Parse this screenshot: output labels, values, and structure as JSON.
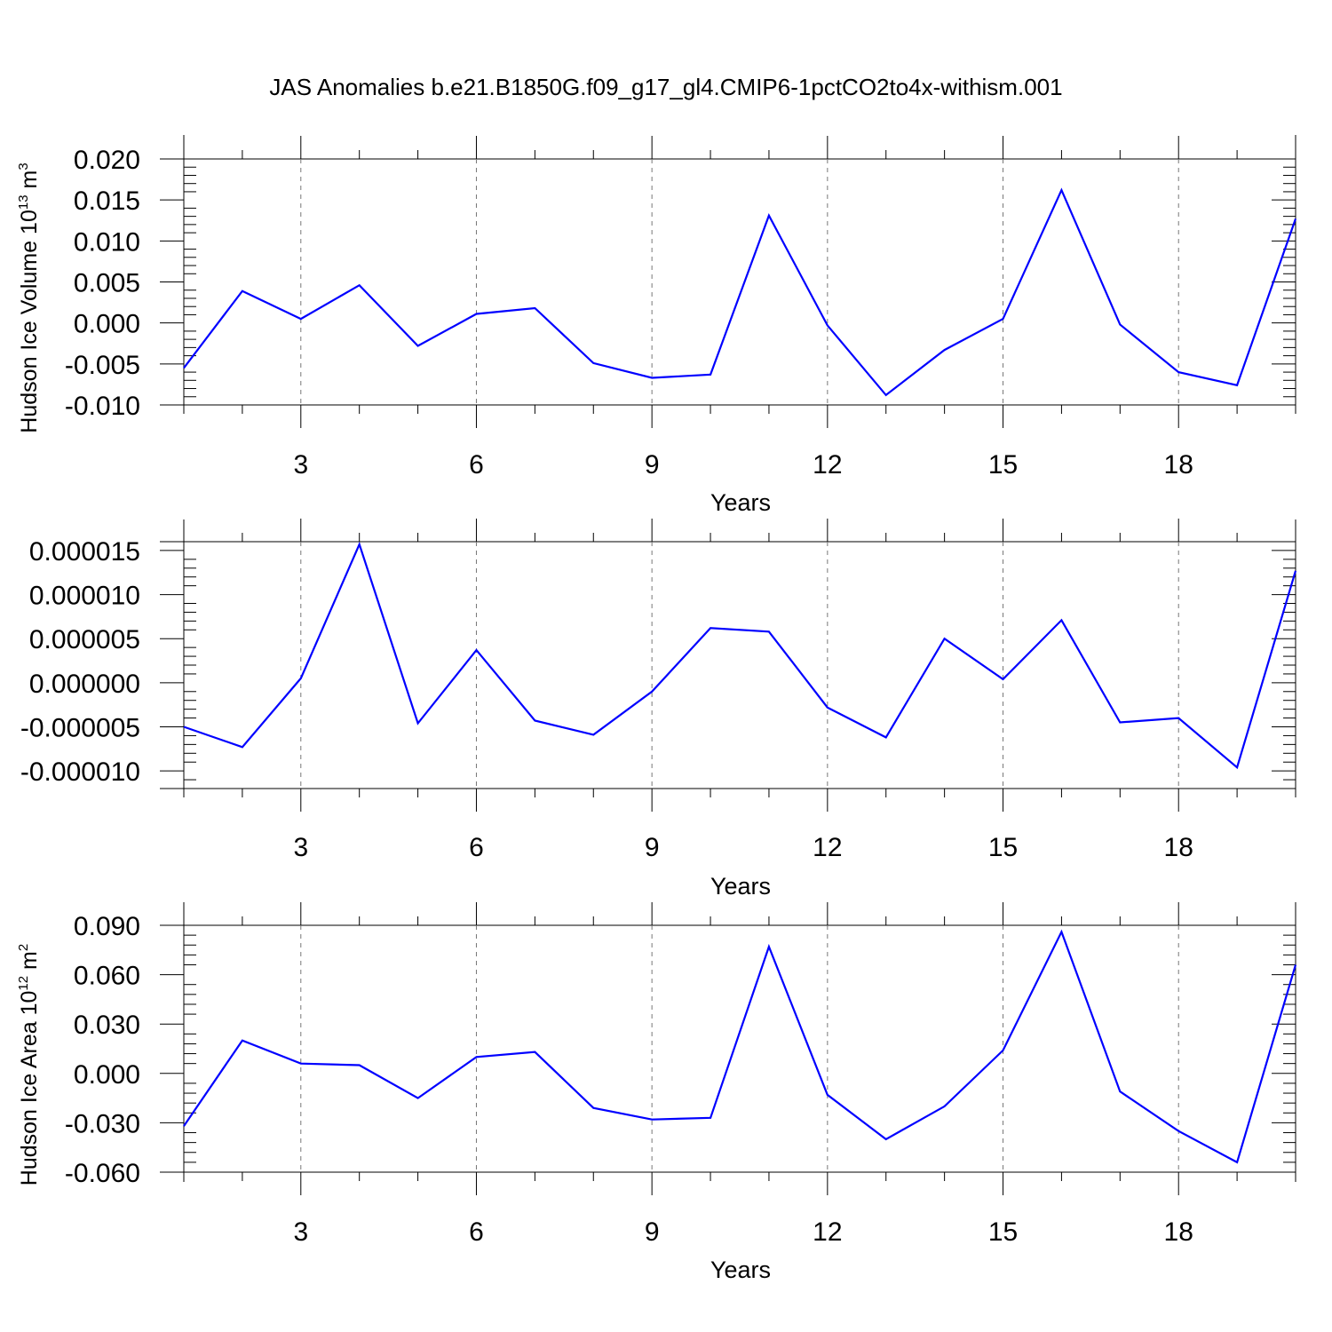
{
  "title": "JAS Anomalies b.e21.B1850G.f09_g17_gl4.CMIP6-1pctCO2to4x-withism.001",
  "colors": {
    "line": "#0000ff",
    "axis": "#000000",
    "grid": "#777777"
  },
  "chart_data": [
    {
      "type": "line",
      "xlabel": "Years",
      "ylabel": {
        "text": "Hudson Ice Volume 10",
        "exp": "13",
        "unit": " m",
        "unit_exp": "3"
      },
      "xlim": [
        1,
        20
      ],
      "ylim": [
        -0.01,
        0.02
      ],
      "xticks": [
        "3",
        "6",
        "9",
        "12",
        "15",
        "18"
      ],
      "yticks": [
        "-0.010",
        "-0.005",
        "0.000",
        "0.005",
        "0.010",
        "0.015",
        "0.020"
      ],
      "grid": "vertical dashed at labeled x ticks",
      "x": [
        1,
        2,
        3,
        4,
        5,
        6,
        7,
        8,
        9,
        10,
        11,
        12,
        13,
        14,
        15,
        16,
        17,
        18,
        19,
        20
      ],
      "y": [
        -0.0055,
        0.0039,
        0.0005,
        0.0046,
        -0.0028,
        0.0011,
        0.0018,
        -0.0049,
        -0.0067,
        -0.0063,
        0.0131,
        -0.0003,
        -0.0088,
        -0.0033,
        0.0005,
        0.0162,
        -0.0002,
        -0.006,
        -0.0076,
        0.0127
      ]
    },
    {
      "type": "line",
      "xlabel": "Years",
      "ylabel": null,
      "xlim": [
        1,
        20
      ],
      "ylim": [
        -1.2e-05,
        1.6e-05
      ],
      "xticks": [
        "3",
        "6",
        "9",
        "12",
        "15",
        "18"
      ],
      "yticks": [
        "-0.000010",
        "-0.000005",
        "0.000000",
        "0.000005",
        "0.000010",
        "0.000015"
      ],
      "grid": "vertical dashed at labeled x ticks",
      "x": [
        1,
        2,
        3,
        4,
        5,
        6,
        7,
        8,
        9,
        10,
        11,
        12,
        13,
        14,
        15,
        16,
        17,
        18,
        19,
        20
      ],
      "y": [
        -5e-06,
        -7.3e-06,
        5e-07,
        1.57e-05,
        -4.6e-06,
        3.7e-06,
        -4.3e-06,
        -5.9e-06,
        -1e-06,
        6.2e-06,
        5.8e-06,
        -2.8e-06,
        -6.2e-06,
        5e-06,
        4e-07,
        7.1e-06,
        -4.5e-06,
        -4e-06,
        -9.6e-06,
        1.27e-05
      ]
    },
    {
      "type": "line",
      "xlabel": "Years",
      "ylabel": {
        "text": "Hudson Ice Area 10",
        "exp": "12",
        "unit": " m",
        "unit_exp": "2"
      },
      "xlim": [
        1,
        20
      ],
      "ylim": [
        -0.06,
        0.09
      ],
      "xticks": [
        "3",
        "6",
        "9",
        "12",
        "15",
        "18"
      ],
      "yticks": [
        "-0.060",
        "-0.030",
        "0.000",
        "0.030",
        "0.060",
        "0.090"
      ],
      "grid": "vertical dashed at labeled x ticks",
      "x": [
        1,
        2,
        3,
        4,
        5,
        6,
        7,
        8,
        9,
        10,
        11,
        12,
        13,
        14,
        15,
        16,
        17,
        18,
        19,
        20
      ],
      "y": [
        -0.032,
        0.02,
        0.006,
        0.005,
        -0.015,
        0.01,
        0.013,
        -0.021,
        -0.028,
        -0.027,
        0.077,
        -0.013,
        -0.04,
        -0.02,
        0.014,
        0.086,
        -0.011,
        -0.035,
        -0.054,
        0.066
      ]
    }
  ]
}
